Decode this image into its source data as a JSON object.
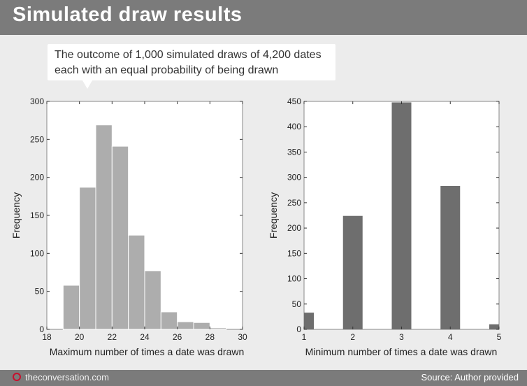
{
  "header": {
    "title": "Simulated draw results"
  },
  "callout": {
    "line1": "The outcome of 1,000 simulated draws of 4,200 dates",
    "line2": "each with an equal probability of being drawn"
  },
  "footer": {
    "brand": "theconversation.com",
    "source": "Source: Author provided"
  },
  "colors": {
    "left_bars": "#adadad",
    "right_bars": "#6e6e6e",
    "brand_red": "#c8102e"
  },
  "chart_data": [
    {
      "type": "bar",
      "subtype": "histogram",
      "bins": [
        [
          19,
          20
        ],
        [
          20,
          21
        ],
        [
          21,
          22
        ],
        [
          22,
          23
        ],
        [
          23,
          24
        ],
        [
          24,
          25
        ],
        [
          25,
          26
        ],
        [
          26,
          27
        ],
        [
          27,
          28
        ],
        [
          28,
          29
        ]
      ],
      "values": [
        58,
        187,
        269,
        241,
        124,
        77,
        23,
        10,
        9,
        2
      ],
      "xlim": [
        18,
        30
      ],
      "ylim": [
        0,
        300
      ],
      "xticks": [
        18,
        20,
        22,
        24,
        26,
        28,
        30
      ],
      "yticks": [
        0,
        50,
        100,
        150,
        200,
        250,
        300
      ],
      "xlabel": "Maximum number of times a date was drawn",
      "ylabel": "Frequency",
      "title": "",
      "grid": false
    },
    {
      "type": "bar",
      "categories": [
        1,
        2,
        3,
        4,
        5
      ],
      "values": [
        33,
        224,
        448,
        283,
        10
      ],
      "xlim": [
        1,
        5
      ],
      "ylim": [
        0,
        450
      ],
      "xticks": [
        1,
        2,
        3,
        4,
        5
      ],
      "yticks": [
        0,
        50,
        100,
        150,
        200,
        250,
        300,
        350,
        400,
        450
      ],
      "xlabel": "Minimum number of times a date was drawn",
      "ylabel": "Frequency",
      "title": "",
      "grid": false
    }
  ]
}
